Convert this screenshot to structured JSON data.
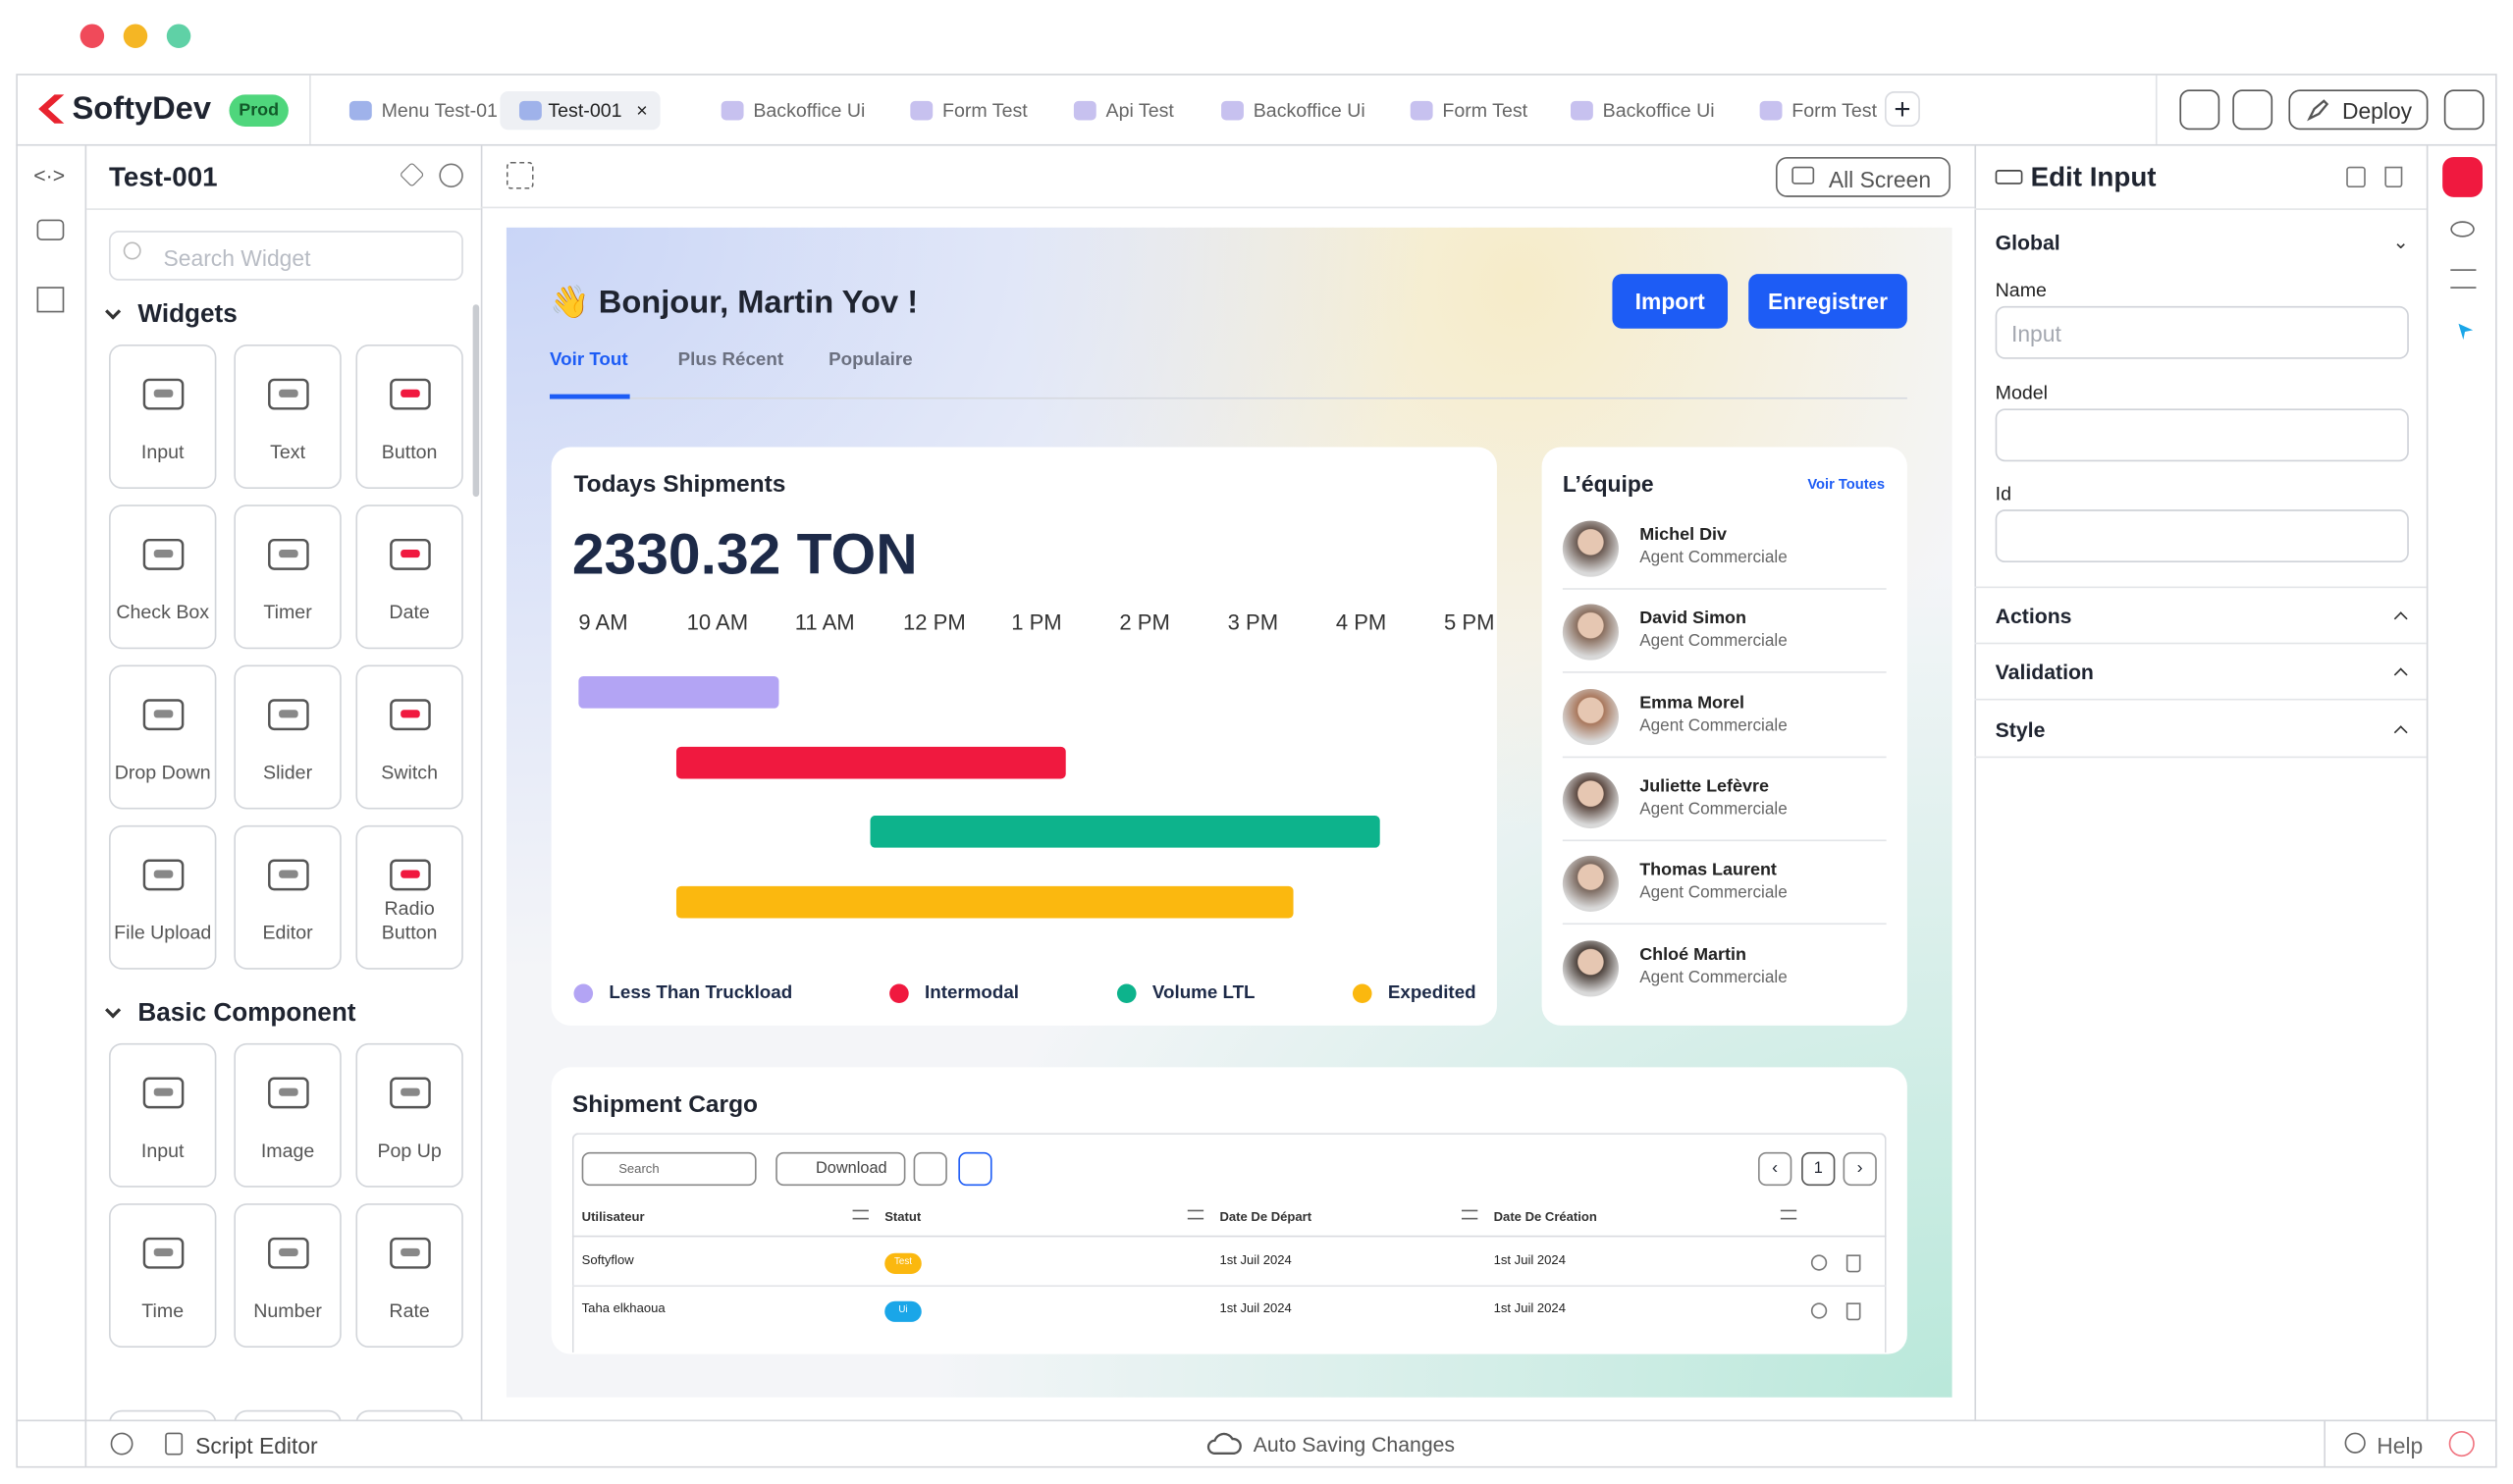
{
  "topbar": {
    "brand": "SoftyDev",
    "env": "Prod",
    "tabs": [
      "Menu Test-01",
      "Test-001",
      "Backoffice Ui",
      "Form Test",
      "Api Test",
      "Backoffice Ui",
      "Form Test",
      "Backoffice Ui",
      "Form Test"
    ],
    "deploy": "Deploy"
  },
  "left_panel": {
    "title": "Test-001",
    "search_placeholder": "Search Widget",
    "sections": [
      {
        "title": "Widgets",
        "items": [
          "Input",
          "Text",
          "Button",
          "Check Box",
          "Timer",
          "Date",
          "Drop Down",
          "Slider",
          "Switch",
          "File Upload",
          "Editor",
          "Radio Button"
        ]
      },
      {
        "title": "Basic Component",
        "items": [
          "Input",
          "Image",
          "Pop Up",
          "Time",
          "Number",
          "Rate"
        ]
      }
    ]
  },
  "canvas": {
    "all_screen": "All Screen",
    "greeting": "Bonjour, Martin Yov !",
    "buttons": [
      "Import",
      "Enregistrer"
    ],
    "tabs": [
      "Voir Tout",
      "Plus Récent",
      "Populaire"
    ],
    "shipments": {
      "title": "Todays Shipments",
      "total": "2330.32 TON",
      "hours": [
        "9 AM",
        "10 AM",
        "11 AM",
        "12 PM",
        "1 PM",
        "2 PM",
        "3 PM",
        "4 PM",
        "5 PM"
      ],
      "series": [
        {
          "name": "Less Than Truckload",
          "color": "#b3a4f4",
          "start": 9,
          "end": 10.85
        },
        {
          "name": "Intermodal",
          "color": "#f0193f",
          "start": 9.9,
          "end": 13.5
        },
        {
          "name": "Volume LTL",
          "color": "#0db38c",
          "start": 11.7,
          "end": 16.4
        },
        {
          "name": "Expedited",
          "color": "#fbb80f",
          "start": 9.9,
          "end": 15.6
        }
      ]
    },
    "team": {
      "title": "L’équipe",
      "link": "Voir Toutes",
      "members": [
        {
          "name": "Michel Div",
          "role": "Agent Commerciale"
        },
        {
          "name": "David Simon",
          "role": "Agent Commerciale"
        },
        {
          "name": "Emma Morel",
          "role": "Agent Commerciale"
        },
        {
          "name": "Juliette Lefèvre",
          "role": "Agent Commerciale"
        },
        {
          "name": "Thomas Laurent",
          "role": "Agent Commerciale"
        },
        {
          "name": "Chloé Martin",
          "role": "Agent Commerciale"
        }
      ]
    },
    "cargo": {
      "title": "Shipment Cargo",
      "search": "Search",
      "download": "Download",
      "page": "1",
      "columns": [
        "Utilisateur",
        "Statut",
        "Date De Départ",
        "Date De Création"
      ],
      "rows": [
        [
          "Softyflow",
          "Test",
          "1st Juil 2024",
          "1st Juil 2024"
        ],
        [
          "Taha elkhaoua",
          "Ui",
          "1st Juil 2024",
          "1st Juil 2024"
        ]
      ]
    }
  },
  "right_panel": {
    "title": "Edit Input",
    "global": "Global",
    "fields": [
      {
        "label": "Name",
        "placeholder": "Input"
      },
      {
        "label": "Model"
      },
      {
        "label": "Id"
      }
    ],
    "sections": [
      "Actions",
      "Validation",
      "Style"
    ]
  },
  "bottombar": {
    "script_editor": "Script Editor",
    "status": "Auto Saving Changes",
    "help": "Help"
  }
}
